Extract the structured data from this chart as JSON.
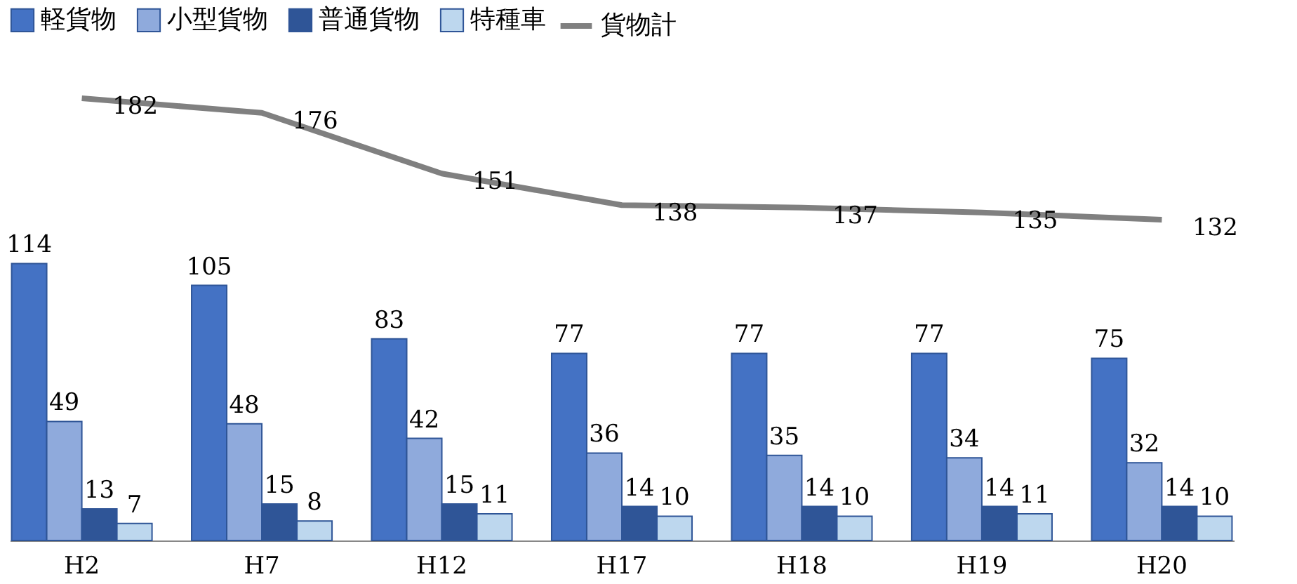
{
  "chart_data": {
    "type": "bar",
    "categories": [
      "H2",
      "H7",
      "H12",
      "H17",
      "H18",
      "H19",
      "H20"
    ],
    "series": [
      {
        "name": "軽貨物",
        "color": "#4472c4",
        "values": [
          114,
          105,
          83,
          77,
          77,
          77,
          75
        ]
      },
      {
        "name": "小型貨物",
        "color": "#8faadc",
        "values": [
          49,
          48,
          42,
          36,
          35,
          34,
          32
        ]
      },
      {
        "name": "普通貨物",
        "color": "#2f5597",
        "values": [
          13,
          15,
          15,
          14,
          14,
          14,
          14
        ]
      },
      {
        "name": "特種車",
        "color": "#bdd7ee",
        "values": [
          7,
          8,
          11,
          10,
          10,
          11,
          10
        ]
      },
      {
        "name": "貨物計",
        "type": "line",
        "color": "#808080",
        "values": [
          182,
          176,
          151,
          138,
          137,
          135,
          132
        ]
      }
    ],
    "data_labels": true,
    "legend": "top",
    "grid": false,
    "marker": "none"
  }
}
